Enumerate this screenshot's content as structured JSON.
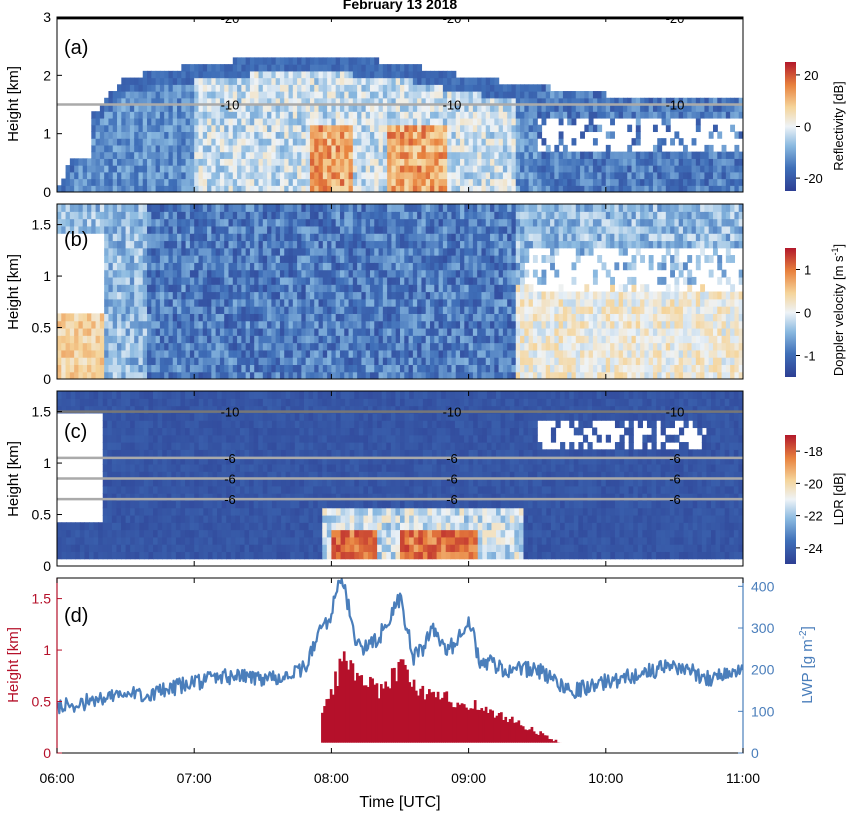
{
  "chart_data": {
    "type": "heatmap",
    "title": "February 13 2018",
    "x_axis": {
      "label": "Time [UTC]",
      "range": [
        "06:00",
        "11:00"
      ],
      "ticks": [
        "06:00",
        "07:00",
        "08:00",
        "09:00",
        "10:00",
        "11:00"
      ]
    },
    "panels": [
      {
        "id": "a",
        "tag": "(a)",
        "type": "heatmap",
        "ylabel": "Height [km]",
        "ylim": [
          0,
          3
        ],
        "yticks": [
          "0",
          "1",
          "2",
          "3"
        ],
        "colorbar": {
          "label": "Reflectivity [dB]",
          "range": [
            -25,
            25
          ],
          "ticks": [
            "20",
            "0",
            "-20"
          ]
        },
        "contours": [
          {
            "height": 2.98,
            "label": "-20"
          },
          {
            "height": 1.5,
            "label": "-10"
          }
        ],
        "cloud_top_profile": [
          {
            "time": "06:00",
            "top": 0.0
          },
          {
            "time": "06:15",
            "top": 1.3
          },
          {
            "time": "06:30",
            "top": 1.95
          },
          {
            "time": "07:00",
            "top": 2.15
          },
          {
            "time": "07:30",
            "top": 2.3
          },
          {
            "time": "08:00",
            "top": 2.3
          },
          {
            "time": "08:30",
            "top": 2.2
          },
          {
            "time": "09:00",
            "top": 1.95
          },
          {
            "time": "09:30",
            "top": 1.8
          },
          {
            "time": "10:00",
            "top": 1.65
          },
          {
            "time": "11:00",
            "top": 1.65
          }
        ]
      },
      {
        "id": "b",
        "tag": "(b)",
        "type": "heatmap",
        "ylabel": "Height [km]",
        "ylim": [
          0,
          1.7
        ],
        "yticks": [
          "0",
          "0.5",
          "1",
          "1.5"
        ],
        "colorbar": {
          "label": "Doppler velocity [m s-1]",
          "label_main": "Doppler velocity [m s",
          "label_exp": "-1",
          "label_end": "]",
          "range": [
            -1.5,
            1.5
          ],
          "ticks": [
            "1",
            "0",
            "-1"
          ]
        }
      },
      {
        "id": "c",
        "tag": "(c)",
        "type": "heatmap",
        "ylabel": "Height [km]",
        "ylim": [
          0,
          1.7
        ],
        "yticks": [
          "0",
          "0.5",
          "1",
          "1.5"
        ],
        "colorbar": {
          "label": "LDR [dB]",
          "range": [
            -25,
            -17
          ],
          "ticks": [
            "-18",
            "-20",
            "-22",
            "-24"
          ]
        },
        "contours": [
          {
            "height": 1.5,
            "label": "-10"
          },
          {
            "height": 1.05,
            "label": "-6"
          },
          {
            "height": 0.85,
            "label": "-6"
          },
          {
            "height": 0.65,
            "label": "-6"
          }
        ]
      },
      {
        "id": "d",
        "tag": "(d)",
        "type": "line",
        "ylabel_left": "Height [km]",
        "ylim_left": [
          0,
          1.7
        ],
        "yticks_left": [
          "0",
          "0.5",
          "1",
          "1.5"
        ],
        "ylabel_right": "LWP [g m-2]",
        "ylabel_right_main": "LWP [g m",
        "ylabel_right_exp": "-2",
        "ylabel_right_end": "]",
        "ylim_right": [
          0,
          420
        ],
        "yticks_right": [
          "0",
          "100",
          "200",
          "300",
          "400"
        ],
        "lwp_series": {
          "x": [
            "06:00",
            "06:15",
            "06:30",
            "06:45",
            "07:00",
            "07:15",
            "07:30",
            "07:45",
            "07:50",
            "07:55",
            "08:00",
            "08:03",
            "08:06",
            "08:10",
            "08:15",
            "08:20",
            "08:25",
            "08:30",
            "08:33",
            "08:36",
            "08:40",
            "08:45",
            "08:50",
            "08:55",
            "09:00",
            "09:05",
            "09:10",
            "09:15",
            "09:30",
            "09:45",
            "10:00",
            "10:15",
            "10:30",
            "10:45",
            "11:00"
          ],
          "values": [
            110,
            125,
            140,
            145,
            170,
            185,
            180,
            190,
            220,
            300,
            330,
            420,
            390,
            280,
            250,
            270,
            320,
            370,
            300,
            230,
            250,
            300,
            240,
            270,
            330,
            210,
            220,
            200,
            200,
            150,
            170,
            190,
            210,
            180,
            200
          ]
        },
        "precip_extent": [
          {
            "time": "07:55",
            "top": 0.4
          },
          {
            "time": "08:05",
            "top": 1.05
          },
          {
            "time": "08:20",
            "top": 0.7
          },
          {
            "time": "08:30",
            "top": 0.95
          },
          {
            "time": "08:40",
            "top": 0.65
          },
          {
            "time": "09:00",
            "top": 0.55
          },
          {
            "time": "09:20",
            "top": 0.35
          },
          {
            "time": "09:40",
            "top": 0.1
          }
        ]
      }
    ],
    "colors": {
      "lwp": "#4a7ebb",
      "height": "#b5102a",
      "low": "#2e4b9b",
      "high": "#b2182b"
    }
  }
}
